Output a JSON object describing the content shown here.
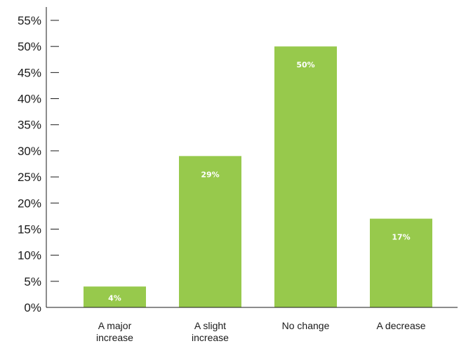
{
  "chart_data": {
    "type": "bar",
    "title": "",
    "xlabel": "",
    "ylabel": "",
    "categories": [
      [
        "A major",
        "increase"
      ],
      [
        "A slight",
        "increase"
      ],
      [
        "No change"
      ],
      [
        "A decrease"
      ]
    ],
    "values": [
      4,
      29,
      50,
      17
    ],
    "data_labels": [
      "4%",
      "29%",
      "50%",
      "17%"
    ],
    "ylim": [
      0,
      55
    ],
    "yticks": [
      0,
      5,
      10,
      15,
      20,
      25,
      30,
      35,
      40,
      45,
      50,
      55
    ],
    "ytick_labels": [
      "0%",
      "5%",
      "10%",
      "15%",
      "20%",
      "25%",
      "30%",
      "35%",
      "40%",
      "45%",
      "50%",
      "55%"
    ],
    "grid": false,
    "legend": "none",
    "bar_color": "#97c94c",
    "label_color": "#ffffff"
  }
}
